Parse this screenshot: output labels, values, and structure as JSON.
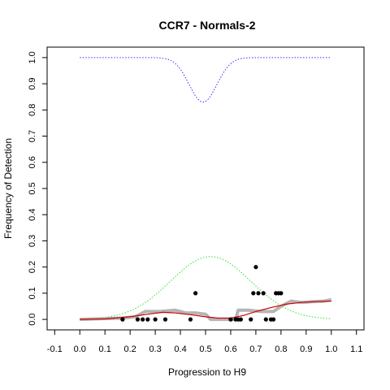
{
  "chart_data": {
    "type": "scatter",
    "title": "CCR7 - Normals-2",
    "xlabel": "Progression to H9",
    "ylabel": "Frequency of Detection",
    "xlim": [
      -0.13,
      1.13
    ],
    "ylim": [
      -0.04,
      1.04
    ],
    "x_ticks": [
      "-0.1",
      "0.0",
      "0.1",
      "0.2",
      "0.3",
      "0.4",
      "0.5",
      "0.6",
      "0.7",
      "0.8",
      "0.9",
      "1.0",
      "1.1"
    ],
    "y_ticks": [
      "0.0",
      "0.1",
      "0.2",
      "0.3",
      "0.4",
      "0.5",
      "0.6",
      "0.7",
      "0.8",
      "0.9",
      "1.0"
    ],
    "grid": false,
    "colors": {
      "points": "#000000",
      "smooth_gray": "#b5b5b5",
      "fit_red": "#cc0000",
      "curve_blue": "#3333ff",
      "curve_green": "#33dd33"
    },
    "points": [
      {
        "x": 0.17,
        "y": 0.0
      },
      {
        "x": 0.23,
        "y": 0.0
      },
      {
        "x": 0.25,
        "y": 0.0
      },
      {
        "x": 0.27,
        "y": 0.0
      },
      {
        "x": 0.3,
        "y": 0.0
      },
      {
        "x": 0.34,
        "y": 0.0
      },
      {
        "x": 0.44,
        "y": 0.0
      },
      {
        "x": 0.46,
        "y": 0.1
      },
      {
        "x": 0.6,
        "y": 0.0
      },
      {
        "x": 0.62,
        "y": 0.0
      },
      {
        "x": 0.63,
        "y": 0.0
      },
      {
        "x": 0.64,
        "y": 0.0
      },
      {
        "x": 0.68,
        "y": 0.0
      },
      {
        "x": 0.69,
        "y": 0.1
      },
      {
        "x": 0.7,
        "y": 0.2
      },
      {
        "x": 0.71,
        "y": 0.1
      },
      {
        "x": 0.73,
        "y": 0.1
      },
      {
        "x": 0.74,
        "y": 0.0
      },
      {
        "x": 0.76,
        "y": 0.0
      },
      {
        "x": 0.77,
        "y": 0.0
      },
      {
        "x": 0.78,
        "y": 0.1
      },
      {
        "x": 0.79,
        "y": 0.1
      },
      {
        "x": 0.8,
        "y": 0.1
      }
    ],
    "smooth_gray": [
      {
        "x": 0.0,
        "y": 0.0
      },
      {
        "x": 0.1,
        "y": 0.003
      },
      {
        "x": 0.17,
        "y": 0.005
      },
      {
        "x": 0.22,
        "y": 0.01
      },
      {
        "x": 0.26,
        "y": 0.03
      },
      {
        "x": 0.32,
        "y": 0.03
      },
      {
        "x": 0.38,
        "y": 0.035
      },
      {
        "x": 0.42,
        "y": 0.025
      },
      {
        "x": 0.46,
        "y": 0.025
      },
      {
        "x": 0.5,
        "y": 0.02
      },
      {
        "x": 0.52,
        "y": 0.0
      },
      {
        "x": 0.58,
        "y": 0.0
      },
      {
        "x": 0.62,
        "y": 0.0
      },
      {
        "x": 0.63,
        "y": 0.035
      },
      {
        "x": 0.67,
        "y": 0.035
      },
      {
        "x": 0.72,
        "y": 0.03
      },
      {
        "x": 0.77,
        "y": 0.03
      },
      {
        "x": 0.8,
        "y": 0.05
      },
      {
        "x": 0.84,
        "y": 0.07
      },
      {
        "x": 0.88,
        "y": 0.065
      },
      {
        "x": 0.93,
        "y": 0.068
      },
      {
        "x": 0.97,
        "y": 0.07
      },
      {
        "x": 1.0,
        "y": 0.075
      }
    ],
    "fit_red": [
      {
        "x": 0.0,
        "y": 0.0
      },
      {
        "x": 0.1,
        "y": 0.002
      },
      {
        "x": 0.2,
        "y": 0.01
      },
      {
        "x": 0.27,
        "y": 0.02
      },
      {
        "x": 0.33,
        "y": 0.027
      },
      {
        "x": 0.38,
        "y": 0.025
      },
      {
        "x": 0.44,
        "y": 0.018
      },
      {
        "x": 0.5,
        "y": 0.01
      },
      {
        "x": 0.55,
        "y": 0.005
      },
      {
        "x": 0.6,
        "y": 0.005
      },
      {
        "x": 0.65,
        "y": 0.015
      },
      {
        "x": 0.7,
        "y": 0.03
      },
      {
        "x": 0.76,
        "y": 0.045
      },
      {
        "x": 0.82,
        "y": 0.058
      },
      {
        "x": 0.88,
        "y": 0.065
      },
      {
        "x": 0.94,
        "y": 0.068
      },
      {
        "x": 1.0,
        "y": 0.07
      }
    ],
    "curve_blue_gaussian": {
      "baseline": 1.0,
      "depth": 0.17,
      "center": 0.49,
      "sigma": 0.055,
      "x_range": [
        0.0,
        1.0
      ]
    },
    "curve_green_gaussian": {
      "baseline": 0.0,
      "height": 0.24,
      "center": 0.52,
      "sigma": 0.16,
      "x_range": [
        0.0,
        1.0
      ]
    }
  }
}
